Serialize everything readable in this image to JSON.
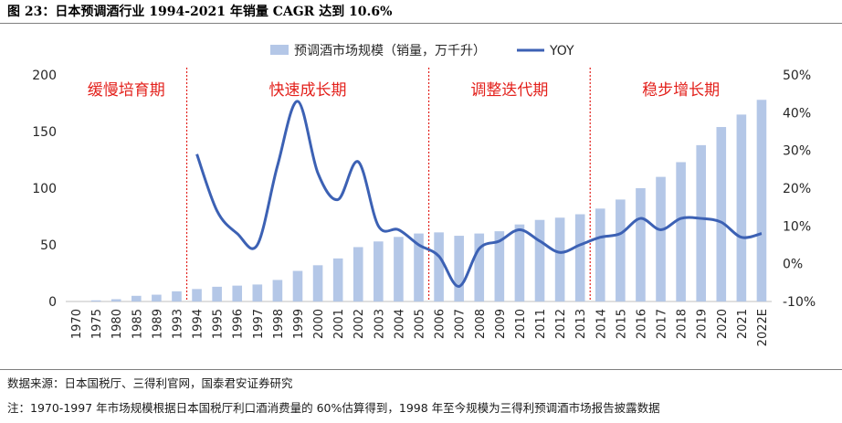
{
  "title": "图 23：日本预调酒行业 1994-2021 年销量 CAGR 达到 10.6%",
  "source": "数据来源：日本国税厅、三得利官网，国泰君安证券研究",
  "note": "注：1970-1997 年市场规模根据日本国税厅利口酒消费量的 60%估算得到，1998 年至今规模为三得利预调酒市场报告披露数据",
  "colors": {
    "bar": "#b4c7e7",
    "line": "#3c61b4",
    "phase_text": "#e3211c",
    "divider": "#e3211c"
  },
  "chart_data": {
    "type": "bar+line",
    "categories": [
      "1970",
      "1975",
      "1980",
      "1985",
      "1989",
      "1993",
      "1994",
      "1995",
      "1996",
      "1997",
      "1998",
      "1999",
      "2000",
      "2001",
      "2002",
      "2003",
      "2004",
      "2005",
      "2006",
      "2007",
      "2008",
      "2009",
      "2010",
      "2011",
      "2012",
      "2013",
      "2014",
      "2015",
      "2016",
      "2017",
      "2018",
      "2019",
      "2020",
      "2021",
      "2022E"
    ],
    "series": [
      {
        "name": "预调酒市场规模（销量，万千升）",
        "type": "bar",
        "axis": "left",
        "values": [
          0,
          1,
          2,
          5,
          6,
          9,
          11,
          13,
          14,
          15,
          19,
          27,
          32,
          38,
          48,
          53,
          57,
          60,
          61,
          58,
          60,
          62,
          68,
          72,
          74,
          77,
          82,
          90,
          100,
          110,
          123,
          138,
          154,
          165,
          178
        ]
      },
      {
        "name": "YOY",
        "type": "line",
        "axis": "right",
        "unit": "%",
        "x": [
          "1994",
          "1995",
          "1996",
          "1997",
          "1998",
          "1999",
          "2000",
          "2001",
          "2002",
          "2003",
          "2004",
          "2005",
          "2006",
          "2007",
          "2008",
          "2009",
          "2010",
          "2011",
          "2012",
          "2013",
          "2014",
          "2015",
          "2016",
          "2017",
          "2018",
          "2019",
          "2020",
          "2021",
          "2022E"
        ],
        "values": [
          29,
          14,
          8,
          5,
          26,
          43,
          24,
          17,
          27,
          10,
          9,
          5,
          2,
          -6,
          4,
          6,
          9,
          6,
          3,
          5,
          7,
          8,
          12,
          9,
          12,
          12,
          11,
          7,
          8
        ]
      }
    ],
    "y_left": {
      "min": 0,
      "max": 200,
      "ticks": [
        0,
        50,
        100,
        150,
        200
      ]
    },
    "y_right": {
      "min": -10,
      "max": 50,
      "ticks": [
        -10,
        0,
        10,
        20,
        30,
        40,
        50
      ],
      "format": "percent"
    },
    "phases": [
      {
        "label": "缓慢培育期",
        "from": "1970",
        "to": "1993"
      },
      {
        "label": "快速成长期",
        "from": "1994",
        "to": "2005"
      },
      {
        "label": "调整迭代期",
        "from": "2006",
        "to": "2013"
      },
      {
        "label": "稳步增长期",
        "from": "2014",
        "to": "2022E"
      }
    ],
    "dividers_after": [
      "1993",
      "2005",
      "2013"
    ],
    "legend_position": "top-center"
  }
}
